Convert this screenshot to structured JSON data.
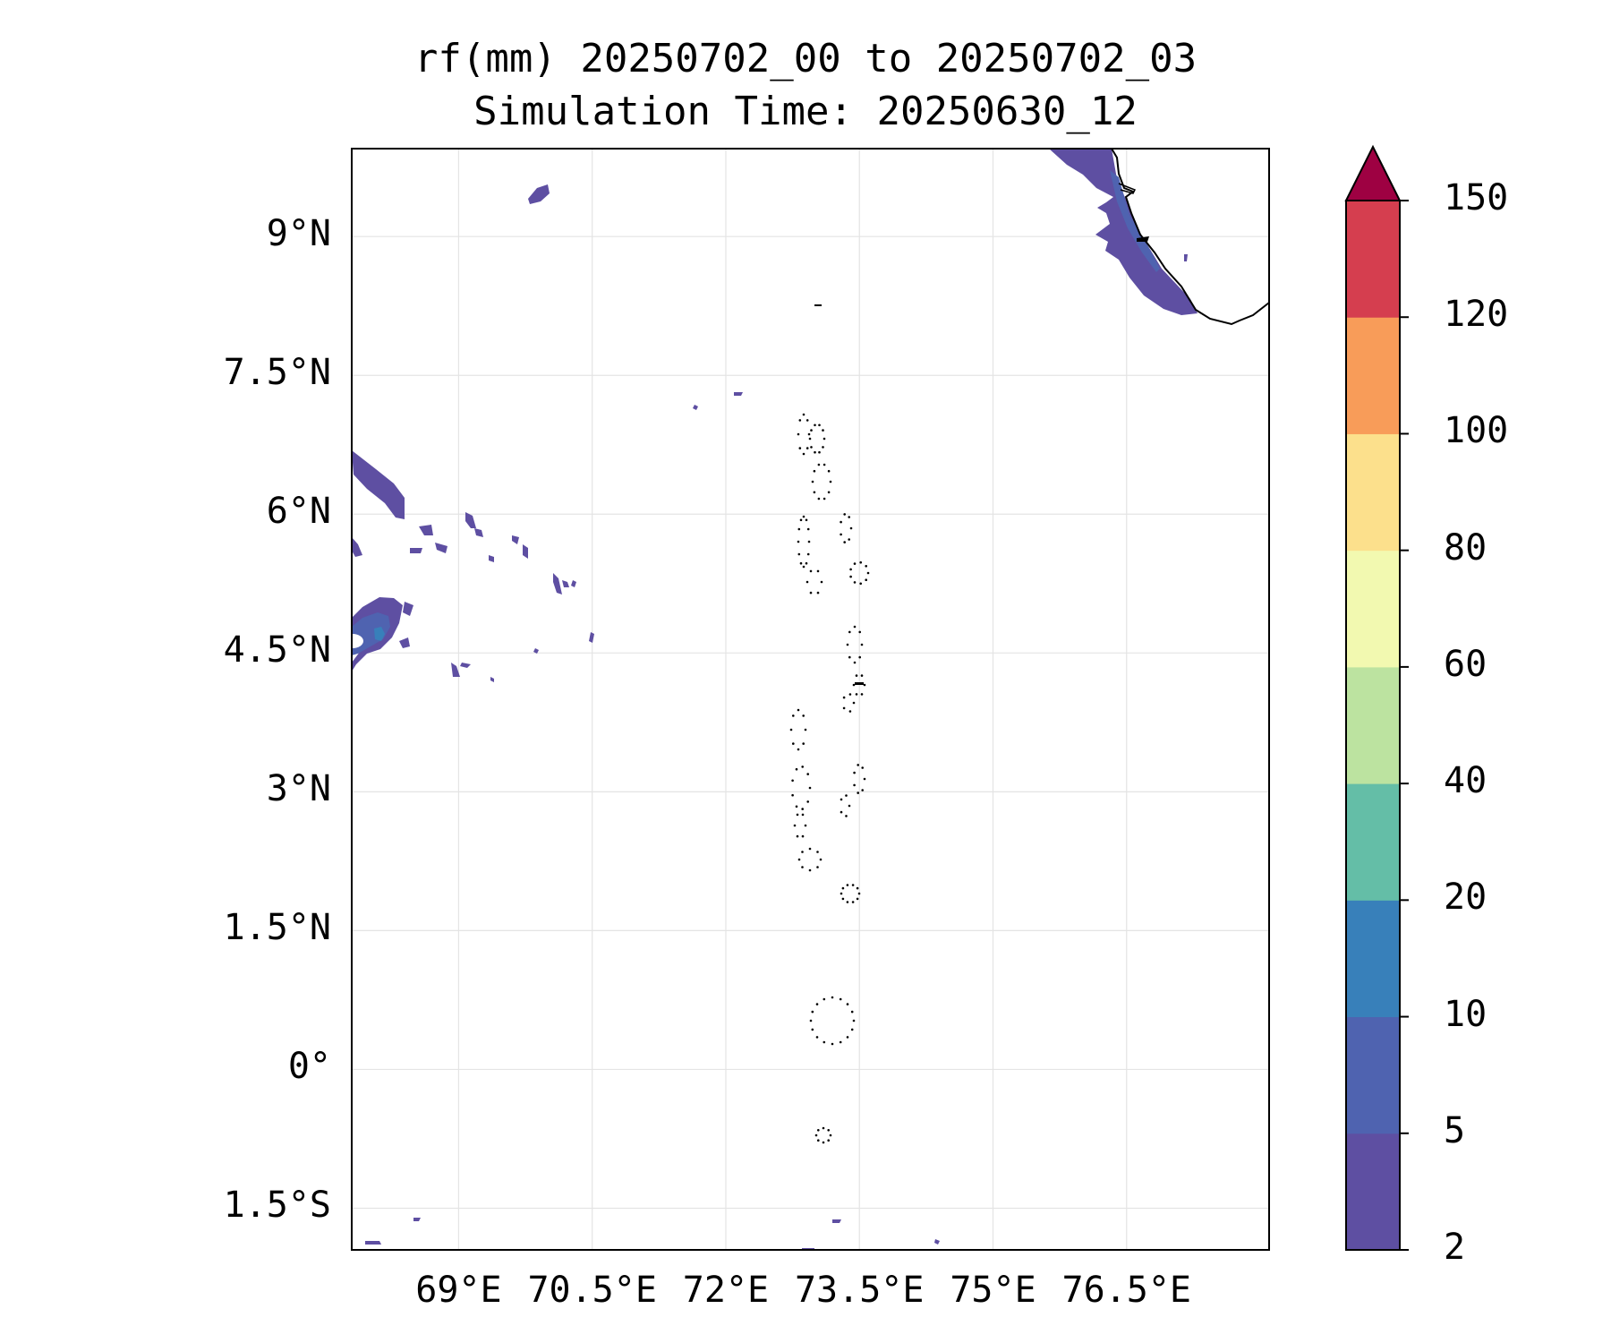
{
  "title": {
    "line1": "rf(mm) 20250702_00 to 20250702_03",
    "line2": "Simulation Time: 20250630_12"
  },
  "map": {
    "projection": "PlateCarree",
    "lon_range": [
      67.8,
      78.1
    ],
    "lat_range": [
      -1.95,
      9.95
    ],
    "lat_ticks": [
      {
        "value": 9,
        "label": "9°N"
      },
      {
        "value": 7.5,
        "label": "7.5°N"
      },
      {
        "value": 6,
        "label": "6°N"
      },
      {
        "value": 4.5,
        "label": "4.5°N"
      },
      {
        "value": 3,
        "label": "3°N"
      },
      {
        "value": 1.5,
        "label": "1.5°N"
      },
      {
        "value": 0,
        "label": "0°"
      },
      {
        "value": -1.5,
        "label": "1.5°S"
      }
    ],
    "lon_ticks": [
      {
        "value": 69,
        "label": "69°E"
      },
      {
        "value": 70.5,
        "label": "70.5°E"
      },
      {
        "value": 72,
        "label": "72°E"
      },
      {
        "value": 73.5,
        "label": "73.5°E"
      },
      {
        "value": 75,
        "label": "75°E"
      },
      {
        "value": 76.5,
        "label": "76.5°E"
      }
    ],
    "gridlines": true,
    "coastline": "India west coast (top-right corner), Maldives atolls as dotted outlines"
  },
  "colorbar": {
    "levels": [
      2,
      5,
      10,
      20,
      40,
      60,
      80,
      100,
      120,
      150
    ],
    "labels": [
      "2",
      "5",
      "10",
      "20",
      "40",
      "60",
      "80",
      "100",
      "120",
      "150"
    ],
    "colors": [
      "#5e4fa2",
      "#4f63b0",
      "#3880ba",
      "#64bea7",
      "#bce3a0",
      "#f2f9b0",
      "#fce08c",
      "#f89c59",
      "#d53e4f"
    ],
    "extend_color": "#9e0142",
    "extend": "max",
    "placement": "right"
  },
  "field_colors": {
    "light": "#5e4fa2",
    "medium": "#4f63b0",
    "heavy": "#3880ba"
  }
}
